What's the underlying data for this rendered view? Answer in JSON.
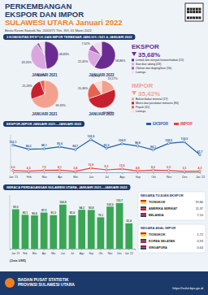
{
  "header": {
    "title_lines": [
      "PERKEMBANGAN",
      "EKSPOR DAN IMPOR",
      "SULAWESI UTARA Januari 2022"
    ],
    "subtitle": "Berita Resmi Statistik No. 20/03/71 Thn. XVI, 01 Maret 2022",
    "section": "3 KOMODITAS EKSPOR DAN IMPOR TERBESAR JANUARI 2021 & JANUARI 2022"
  },
  "chart_data": [
    {
      "type": "pie",
      "title": "EKSPOR",
      "annotations": [
        "35,68%"
      ],
      "categories": [
        "Lemak dan minyak hewani/nabati (15)",
        "Ikan dan udang (03)",
        "Olahan dari daging/ikan (16)",
        "Lainnya"
      ],
      "colors": [
        "#6a2c91",
        "#d9a6df",
        "#a35bb5",
        "#eddcf1"
      ],
      "legend": "right",
      "data_labels": true,
      "series": [
        {
          "name": "JANUARI 2021",
          "values": [
            48.83,
            43.26,
            3.2,
            6.71
          ],
          "value_labels": [
            "48,83%",
            "43,26%",
            "3,20%",
            "6,71%"
          ]
        },
        {
          "name": "JANUARI 2022",
          "values": [
            58.86,
            22.45,
            7.52,
            11.17
          ],
          "value_labels": [
            "58,86%",
            "22,45%",
            "7,52%",
            "11,17%"
          ]
        }
      ]
    },
    {
      "type": "pie",
      "title": "IMPOR",
      "annotations": [
        "35,42%"
      ],
      "categories": [
        "Bahan bakar mineral (27)",
        "Mesin dan peralatan mekanis (84)",
        "Pupuk (31)",
        "Lainnya"
      ],
      "colors": [
        "#f4a08f",
        "#c8202f",
        "#e8624f",
        "#fbdcd4"
      ],
      "legend": "right",
      "data_labels": true,
      "series": [
        {
          "name": "JANUARI 2021",
          "values": [
            69.33,
            25.18,
            5.49,
            null
          ],
          "value_labels": [
            "69,33%",
            "25,18%",
            "5,49%",
            null
          ]
        },
        {
          "name": "JANUARI 2022",
          "values": [
            19.27,
            50.6,
            20.36,
            9.77
          ],
          "value_labels": [
            "19,27%",
            "50,60%",
            "20,36%",
            "9,77%"
          ]
        }
      ]
    },
    {
      "type": "line",
      "title": "EKSPOR-IMPOR JANUARI 2021—JANUARI 2022",
      "categories": [
        "Jan '21",
        "Feb",
        "Mar",
        "Apr",
        "Mei",
        "Jun",
        "Jul",
        "Agu",
        "Sep",
        "Okt",
        "Nov",
        "Des",
        "Jan '22"
      ],
      "ylim": [
        0,
        140
      ],
      "tick_labels": "x",
      "legend": "top-right",
      "data_labels": true,
      "marker": "circle",
      "series": [
        {
          "name": "EKSPOR",
          "color": "#1f5fa8",
          "values": [
            102.1,
            86.3,
            88.1,
            95.6,
            84.7,
            122.6,
            90.2,
            106.9,
            98.8,
            84.1,
            108.5,
            114.0,
            65.7
          ],
          "value_labels": [
            "102,1",
            "86,3",
            "88,1",
            "95,6",
            "84,7",
            "122,6",
            "90,2",
            "106,9",
            "98,8",
            "84,1",
            "108,5",
            "114,0",
            "65,7"
          ]
        },
        {
          "name": "IMPOR",
          "color": "#e8433a",
          "values": [
            6.6,
            4.2,
            7.5,
            8.1,
            3.4,
            15.8,
            9.2,
            12.6,
            4.9,
            8.0,
            6.5,
            3.3,
            4.3
          ],
          "value_labels": [
            "6,6",
            "4,2",
            "7,5",
            "8,1",
            "3,4",
            "15,8",
            "9,2",
            "12,6",
            "4,9",
            "8,0",
            "6,5",
            "3,3",
            "4,3"
          ]
        }
      ]
    },
    {
      "type": "bar",
      "title": "NERACA PERDAGANGAN SULAWESI UTARA, JANUARI 2021—JANUARI 2022",
      "ylabel": "(Juta US$)",
      "categories": [
        "Jan '21",
        "Feb",
        "Mar",
        "Apr",
        "Mei",
        "Jun",
        "Jul",
        "Agu",
        "Sep",
        "Okt",
        "Nov",
        "Des",
        "Jan '22"
      ],
      "values": [
        95.5,
        82.1,
        80.6,
        87.5,
        81.3,
        106.8,
        81.0,
        94.3,
        93.9,
        76.1,
        102.0,
        110.7,
        61.4
      ],
      "value_labels": [
        "95,5",
        "82,1",
        "80,6",
        "87,5",
        "81,3",
        "106,8",
        "81,0",
        "94,3",
        "93,9",
        "76,1",
        "102,0",
        "110,7",
        "61,4"
      ],
      "color": "#3aa655",
      "ylim": [
        0,
        130
      ],
      "tick_labels": "x",
      "data_labels": true
    }
  ],
  "partners": [
    {
      "title": "NEGARA TUJUAN EKSPOR",
      "rows": [
        {
          "country": "TIONGKOK",
          "value": "19,84"
        },
        {
          "country": "AMERIKA SERIKAT",
          "value": "11,37"
        },
        {
          "country": "BELANDA",
          "value": "7,10"
        }
      ]
    },
    {
      "title": "NEGARA ASAL IMPOR",
      "rows": [
        {
          "country": "TIONGKOK",
          "value": "1,72"
        },
        {
          "country": "KOREA SELATAN",
          "value": "0,93"
        },
        {
          "country": "SINGAPURA",
          "value": "0,64"
        }
      ]
    }
  ],
  "footer": {
    "org_lines": [
      "BADAN PUSAT STATISTIK",
      "PROVINSI SULAWESI UTARA"
    ],
    "url": "https://sulut.bps.go.id"
  }
}
